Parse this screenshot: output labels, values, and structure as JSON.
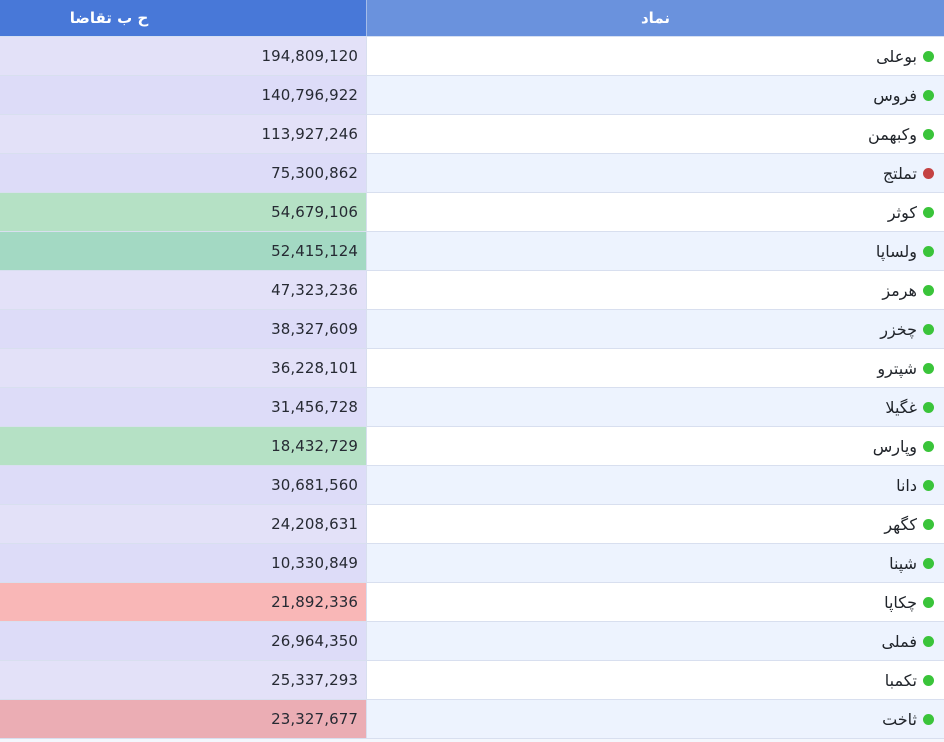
{
  "header": {
    "demand_col": "ح ب تقاضا",
    "symbol_col": "نماد"
  },
  "rows": [
    {
      "name": "بوعلی",
      "value": "194,809,120",
      "status": "green",
      "status_color": "#3ac43a",
      "value_bg": "#e3e1f8",
      "row_bg": "#ffffff"
    },
    {
      "name": "فروس",
      "value": "140,796,922",
      "status": "green",
      "status_color": "#3ac43a",
      "value_bg": "#dddcf8",
      "row_bg": "#edf3fe"
    },
    {
      "name": "وکبهمن",
      "value": "113,927,246",
      "status": "green",
      "status_color": "#3ac43a",
      "value_bg": "#e3e1f8",
      "row_bg": "#ffffff"
    },
    {
      "name": "تملتج",
      "value": "75,300,862",
      "status": "red",
      "status_color": "#c44242",
      "value_bg": "#dddcf8",
      "row_bg": "#edf3fe"
    },
    {
      "name": "کوثر",
      "value": "54,679,106",
      "status": "green",
      "status_color": "#3ac43a",
      "value_bg": "#b5e1c5",
      "row_bg": "#ffffff"
    },
    {
      "name": "ولساپا",
      "value": "52,415,124",
      "status": "green",
      "status_color": "#3ac43a",
      "value_bg": "#a3d9c3",
      "row_bg": "#edf3fe"
    },
    {
      "name": "هرمز",
      "value": "47,323,236",
      "status": "green",
      "status_color": "#3ac43a",
      "value_bg": "#e3e1f8",
      "row_bg": "#ffffff"
    },
    {
      "name": "چخزر",
      "value": "38,327,609",
      "status": "green",
      "status_color": "#3ac43a",
      "value_bg": "#dddcf8",
      "row_bg": "#edf3fe"
    },
    {
      "name": "شپترو",
      "value": "36,228,101",
      "status": "green",
      "status_color": "#3ac43a",
      "value_bg": "#e3e1f8",
      "row_bg": "#ffffff"
    },
    {
      "name": "غگیلا",
      "value": "31,456,728",
      "status": "green",
      "status_color": "#3ac43a",
      "value_bg": "#dddcf8",
      "row_bg": "#edf3fe"
    },
    {
      "name": "وپارس",
      "value": "18,432,729",
      "status": "green",
      "status_color": "#3ac43a",
      "value_bg": "#b5e1c5",
      "row_bg": "#ffffff"
    },
    {
      "name": "دانا",
      "value": "30,681,560",
      "status": "green",
      "status_color": "#3ac43a",
      "value_bg": "#dddcf8",
      "row_bg": "#edf3fe"
    },
    {
      "name": "کگهر",
      "value": "24,208,631",
      "status": "green",
      "status_color": "#3ac43a",
      "value_bg": "#e3e1f8",
      "row_bg": "#ffffff"
    },
    {
      "name": "شپنا",
      "value": "10,330,849",
      "status": "green",
      "status_color": "#3ac43a",
      "value_bg": "#dddcf8",
      "row_bg": "#edf3fe"
    },
    {
      "name": "چکاپا",
      "value": "21,892,336",
      "status": "green",
      "status_color": "#3ac43a",
      "value_bg": "#f9b7b7",
      "row_bg": "#ffffff"
    },
    {
      "name": "فملی",
      "value": "26,964,350",
      "status": "green",
      "status_color": "#3ac43a",
      "value_bg": "#dddcf8",
      "row_bg": "#edf3fe"
    },
    {
      "name": "تکمبا",
      "value": "25,337,293",
      "status": "green",
      "status_color": "#3ac43a",
      "value_bg": "#e3e1f8",
      "row_bg": "#ffffff"
    },
    {
      "name": "ثاخت",
      "value": "23,327,677",
      "status": "green",
      "status_color": "#3ac43a",
      "value_bg": "#ebadb4",
      "row_bg": "#edf3fe"
    }
  ]
}
